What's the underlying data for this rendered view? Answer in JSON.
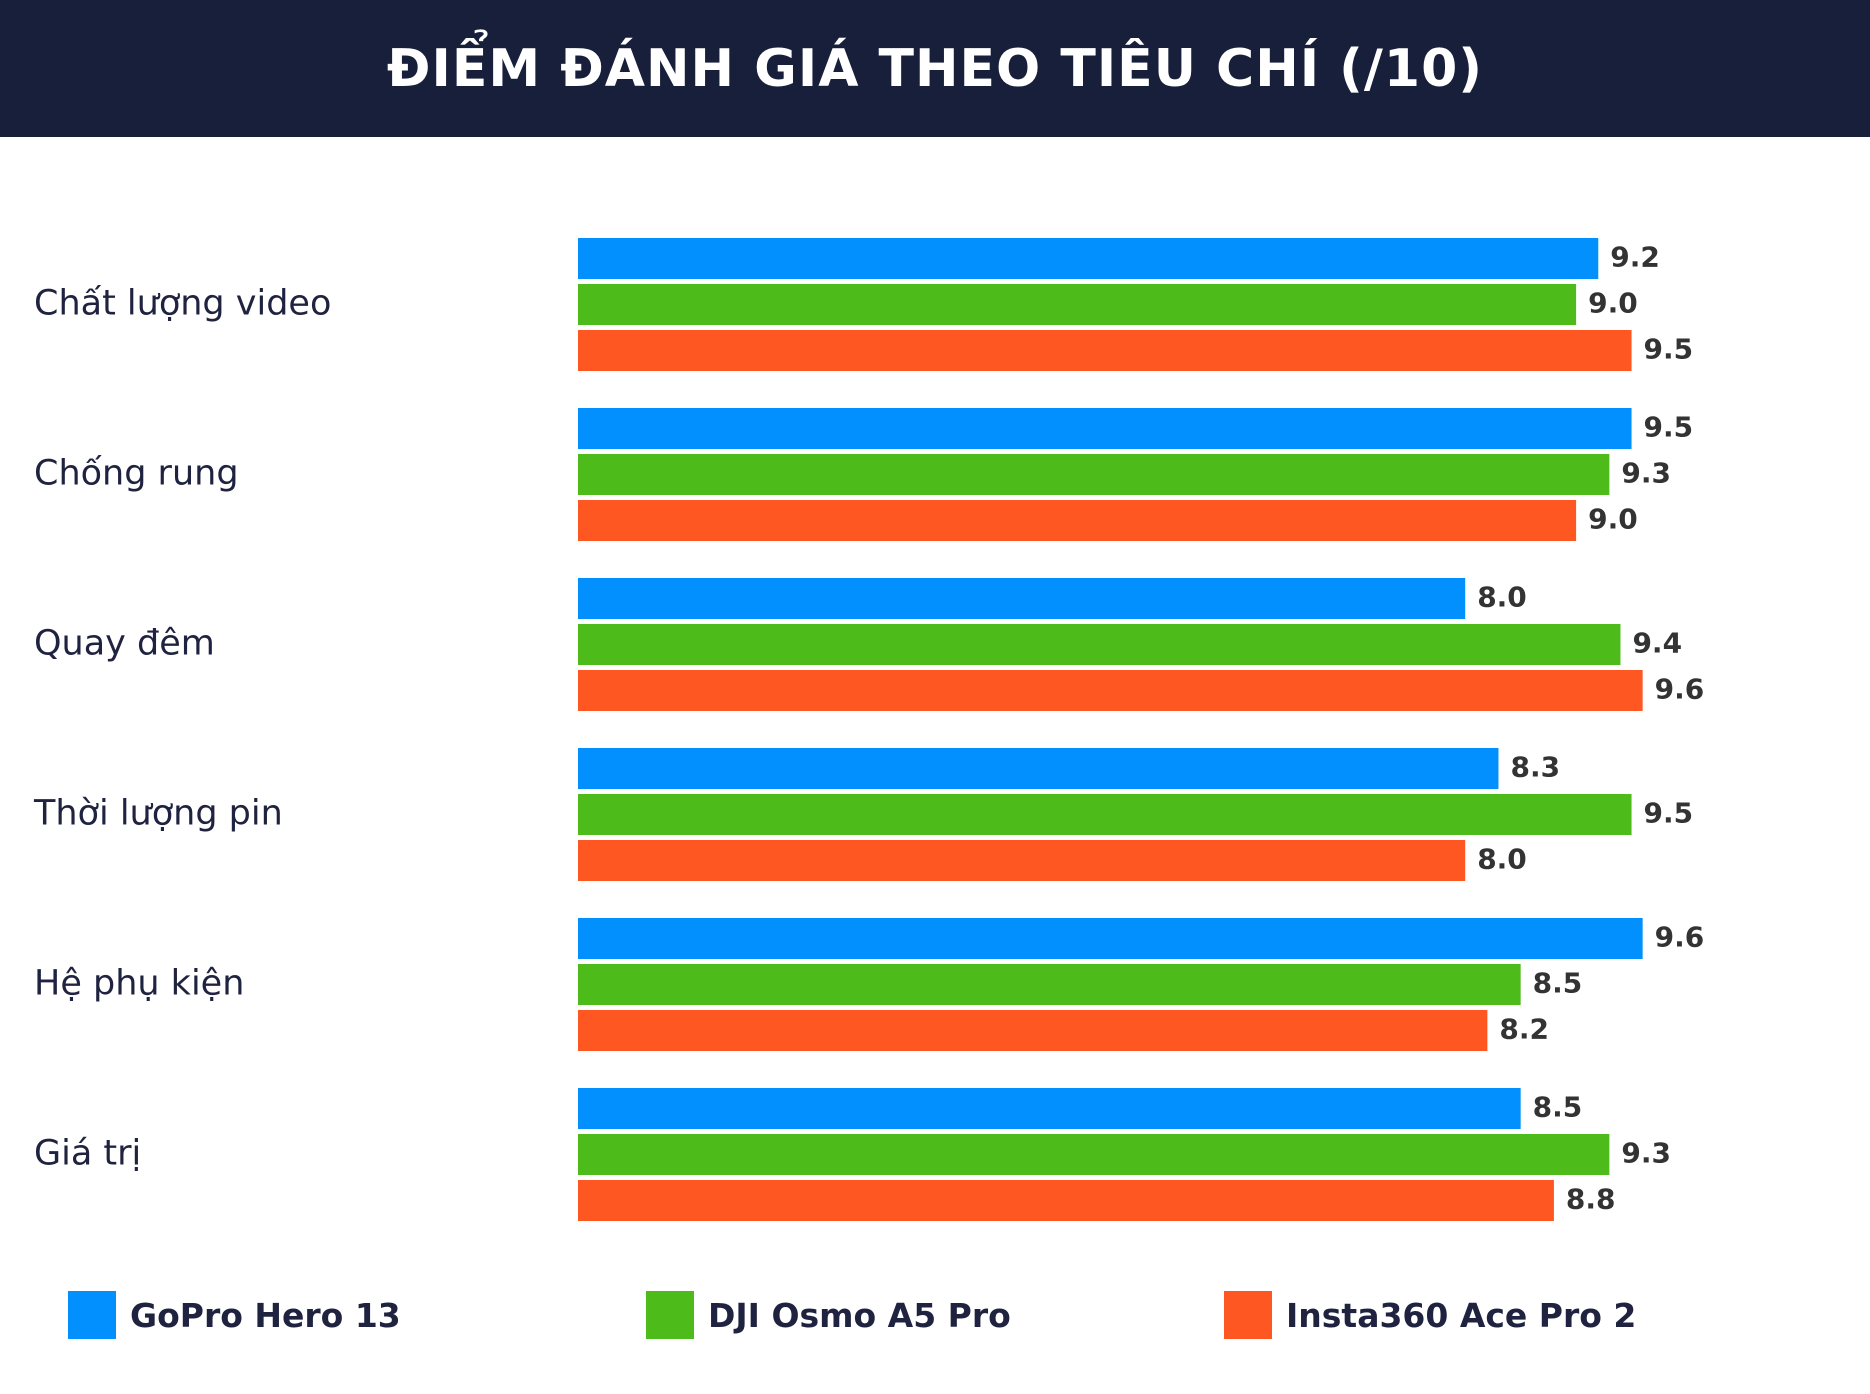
{
  "header": {
    "title": "ĐIỂM ĐÁNH GIÁ THEO TIÊU CHÍ (/10)"
  },
  "chart_data": {
    "type": "bar",
    "orientation": "horizontal",
    "title": "ĐIỂM ĐÁNH GIÁ THEO TIÊU CHÍ (/10)",
    "categories": [
      "Chất lượng video",
      "Chống rung",
      "Quay đêm",
      "Thời lượng pin",
      "Hệ phụ kiện",
      "Giá trị"
    ],
    "series": [
      {
        "name": "GoPro Hero 13",
        "color": "#0390ff",
        "values": [
          9.2,
          9.5,
          8.0,
          8.3,
          9.6,
          8.5
        ]
      },
      {
        "name": "DJI Osmo A5 Pro",
        "color": "#4dbb19",
        "values": [
          9.0,
          9.3,
          9.4,
          9.5,
          8.5,
          9.3
        ]
      },
      {
        "name": "Insta360 Ace Pro 2",
        "color": "#ff5722",
        "values": [
          9.5,
          9.0,
          9.6,
          8.0,
          8.2,
          8.8
        ]
      }
    ],
    "xlim": [
      0,
      10
    ],
    "grid": false,
    "legend_position": "bottom",
    "value_labels": true
  }
}
